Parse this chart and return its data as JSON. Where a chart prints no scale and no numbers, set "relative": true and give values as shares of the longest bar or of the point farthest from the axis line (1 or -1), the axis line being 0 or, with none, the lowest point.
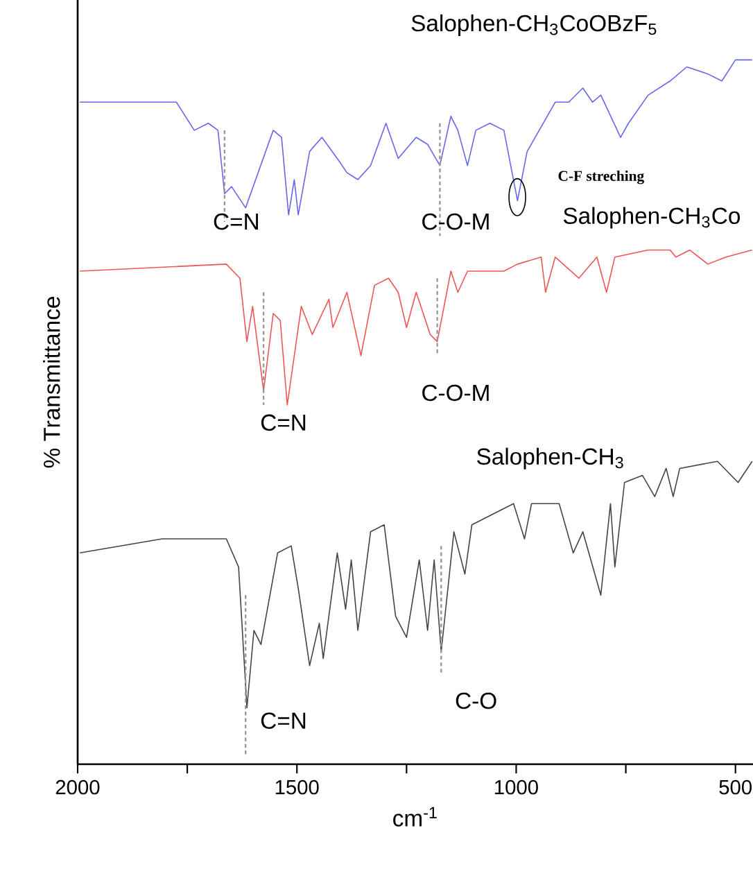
{
  "chart_data": {
    "type": "line",
    "relative": true,
    "xlabel": "cm$^{-1}$",
    "ylabel": "% Transmittance",
    "xlim": [
      2000,
      460
    ],
    "xticks": [
      2000,
      {
        "value": 1750,
        "label": null
      },
      1500,
      {
        "value": 1250,
        "label": null
      },
      1000,
      {
        "value": 750,
        "label": null
      },
      500
    ],
    "series": [
      {
        "name": "Salophen-CH$_{3}$CoOBzF$_{5}$",
        "color": "#6666ee",
        "x": [
          1995,
          1775,
          1734,
          1702,
          1680,
          1665,
          1649,
          1617,
          1554,
          1535,
          1519,
          1506,
          1497,
          1471,
          1443,
          1408,
          1386,
          1361,
          1332,
          1297,
          1269,
          1228,
          1202,
          1174,
          1149,
          1133,
          1111,
          1092,
          1060,
          1028,
          997,
          975,
          911,
          880,
          848,
          826,
          807,
          762,
          744,
          699,
          649,
          611,
          563,
          531,
          500,
          462
        ],
        "values": [
          0.94,
          0.94,
          0.9,
          0.91,
          0.9,
          0.81,
          0.82,
          0.79,
          0.9,
          0.89,
          0.78,
          0.83,
          0.78,
          0.87,
          0.89,
          0.86,
          0.84,
          0.83,
          0.85,
          0.91,
          0.86,
          0.89,
          0.88,
          0.85,
          0.92,
          0.9,
          0.85,
          0.9,
          0.91,
          0.9,
          0.8,
          0.87,
          0.94,
          0.94,
          0.96,
          0.94,
          0.95,
          0.89,
          0.91,
          0.95,
          0.97,
          0.99,
          0.98,
          0.97,
          1.0,
          1.0
        ]
      },
      {
        "name": "Salophen-CH$_{3}$Co",
        "color": "#ee5555",
        "x": [
          1995,
          1661,
          1630,
          1614,
          1601,
          1576,
          1554,
          1538,
          1522,
          1490,
          1465,
          1427,
          1418,
          1386,
          1354,
          1323,
          1291,
          1269,
          1250,
          1228,
          1196,
          1180,
          1149,
          1133,
          1111,
          1028,
          997,
          943,
          933,
          911,
          857,
          816,
          794,
          775,
          699,
          649,
          636,
          604,
          563,
          522,
          462
        ],
        "values": [
          0.7,
          0.71,
          0.69,
          0.6,
          0.65,
          0.53,
          0.64,
          0.63,
          0.51,
          0.65,
          0.61,
          0.66,
          0.62,
          0.67,
          0.58,
          0.68,
          0.69,
          0.67,
          0.62,
          0.67,
          0.61,
          0.6,
          0.7,
          0.67,
          0.7,
          0.7,
          0.71,
          0.72,
          0.67,
          0.72,
          0.69,
          0.72,
          0.67,
          0.72,
          0.73,
          0.73,
          0.72,
          0.73,
          0.71,
          0.72,
          0.73
        ]
      },
      {
        "name": "Salophen-CH$_{3}$",
        "color": "#444444",
        "x": [
          1995,
          1807,
          1661,
          1633,
          1614,
          1598,
          1582,
          1544,
          1513,
          1497,
          1471,
          1449,
          1440,
          1408,
          1389,
          1376,
          1361,
          1332,
          1301,
          1275,
          1250,
          1221,
          1202,
          1187,
          1171,
          1142,
          1117,
          1101,
          1006,
          981,
          965,
          902,
          870,
          848,
          807,
          785,
          775,
          753,
          712,
          684,
          658,
          642,
          627,
          541,
          494,
          462
        ],
        "values": [
          0.3,
          0.32,
          0.32,
          0.28,
          0.08,
          0.19,
          0.17,
          0.3,
          0.31,
          0.25,
          0.14,
          0.2,
          0.15,
          0.3,
          0.22,
          0.29,
          0.19,
          0.33,
          0.34,
          0.21,
          0.18,
          0.29,
          0.19,
          0.29,
          0.16,
          0.33,
          0.27,
          0.34,
          0.37,
          0.32,
          0.37,
          0.37,
          0.3,
          0.33,
          0.24,
          0.37,
          0.28,
          0.4,
          0.41,
          0.38,
          0.42,
          0.38,
          0.42,
          0.43,
          0.4,
          0.43
        ]
      },
      {
        "type": "line",
        "line_style": "dashed",
        "color": "#999999",
        "x": [
          1665,
          1665
        ],
        "values": [
          0.9,
          0.77
        ]
      },
      {
        "type": "line",
        "line_style": "dashed",
        "color": "#999999",
        "x": [
          1174,
          1174
        ],
        "values": [
          0.91,
          0.75
        ]
      },
      {
        "type": "line",
        "line_style": "dashed",
        "color": "#999999",
        "x": [
          1576,
          1576
        ],
        "values": [
          0.67,
          0.51
        ]
      },
      {
        "type": "line",
        "line_style": "dashed",
        "color": "#999999",
        "x": [
          1180,
          1180
        ],
        "values": [
          0.69,
          0.58
        ]
      },
      {
        "type": "line",
        "line_style": "dashed",
        "color": "#999999",
        "x": [
          1617,
          1617
        ],
        "values": [
          0.24,
          0.01
        ]
      },
      {
        "type": "line",
        "line_style": "dashed",
        "color": "#999999",
        "x": [
          1171,
          1171
        ],
        "values": [
          0.31,
          0.13
        ]
      }
    ],
    "annotations": [
      "C=N",
      "C-O-M",
      "C-F streching",
      "C=N",
      "C-O-M",
      "C=N",
      "C-O"
    ]
  }
}
